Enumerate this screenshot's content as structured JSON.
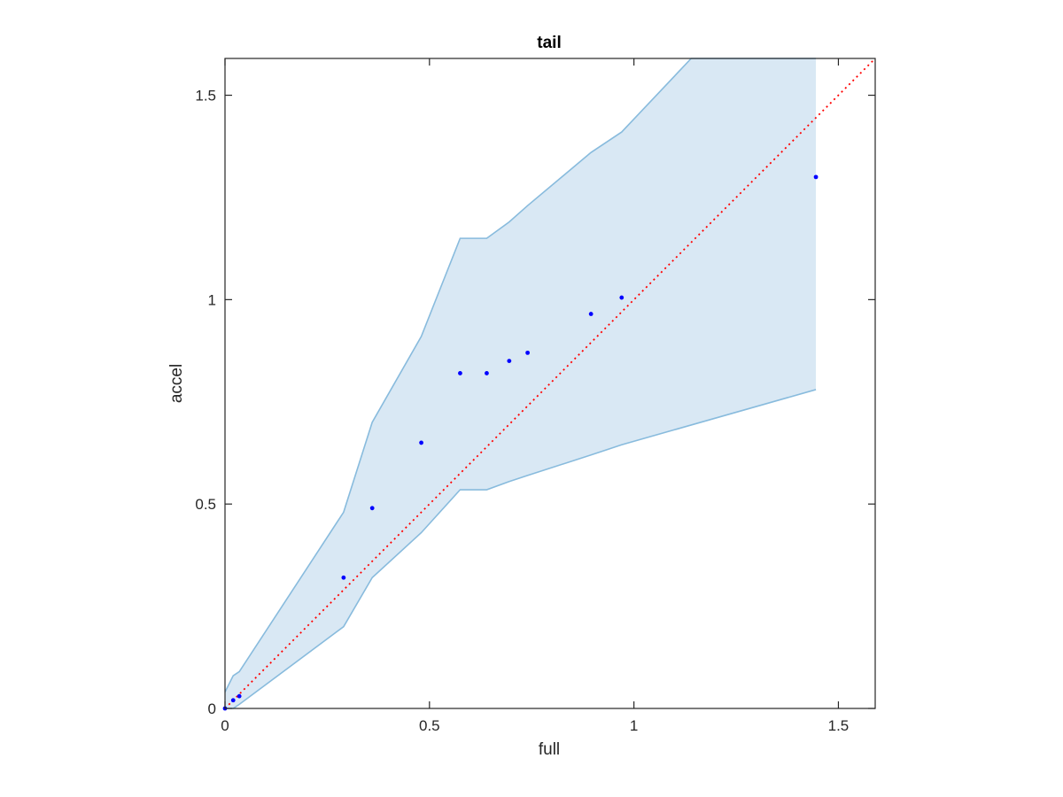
{
  "chart_data": {
    "type": "scatter",
    "title": "tail",
    "xlabel": "full",
    "ylabel": "accel",
    "xlim": [
      0,
      1.59
    ],
    "ylim": [
      0,
      1.59
    ],
    "xticks": [
      "0",
      "0.5",
      "1",
      "1.5"
    ],
    "yticks": [
      "0",
      "0.5",
      "1",
      "1.5"
    ],
    "xtick_values": [
      0,
      0.5,
      1,
      1.5
    ],
    "ytick_values": [
      0,
      0.5,
      1,
      1.5
    ],
    "grid": false,
    "points": [
      {
        "x": 0.0,
        "y": 0.0
      },
      {
        "x": 0.02,
        "y": 0.02
      },
      {
        "x": 0.035,
        "y": 0.03
      },
      {
        "x": 0.29,
        "y": 0.32
      },
      {
        "x": 0.36,
        "y": 0.49
      },
      {
        "x": 0.48,
        "y": 0.65
      },
      {
        "x": 0.575,
        "y": 0.82
      },
      {
        "x": 0.64,
        "y": 0.82
      },
      {
        "x": 0.695,
        "y": 0.85
      },
      {
        "x": 0.74,
        "y": 0.87
      },
      {
        "x": 0.895,
        "y": 0.965
      },
      {
        "x": 0.97,
        "y": 1.005
      },
      {
        "x": 1.445,
        "y": 1.3
      }
    ],
    "band": {
      "upper": [
        [
          0.0,
          0.04
        ],
        [
          0.02,
          0.08
        ],
        [
          0.035,
          0.09
        ],
        [
          0.29,
          0.48
        ],
        [
          0.36,
          0.7
        ],
        [
          0.48,
          0.91
        ],
        [
          0.575,
          1.15
        ],
        [
          0.64,
          1.15
        ],
        [
          0.695,
          1.19
        ],
        [
          0.74,
          1.23
        ],
        [
          0.895,
          1.36
        ],
        [
          0.97,
          1.41
        ],
        [
          1.14,
          1.59
        ],
        [
          1.445,
          1.59
        ]
      ],
      "lower": [
        [
          0.0,
          0.0
        ],
        [
          0.02,
          0.0
        ],
        [
          0.035,
          0.01
        ],
        [
          0.29,
          0.2
        ],
        [
          0.36,
          0.32
        ],
        [
          0.48,
          0.43
        ],
        [
          0.575,
          0.535
        ],
        [
          0.64,
          0.535
        ],
        [
          0.695,
          0.555
        ],
        [
          0.74,
          0.57
        ],
        [
          0.895,
          0.62
        ],
        [
          0.97,
          0.645
        ],
        [
          1.445,
          0.78
        ]
      ]
    },
    "reference_line": {
      "x": [
        0,
        1.59
      ],
      "y": [
        0,
        1.59
      ],
      "style": "dotted"
    },
    "colors": {
      "points": "#0000ff",
      "band_fill": "#d9e8f4",
      "band_edge": "#88bbdd",
      "reference_line": "#ff0000",
      "axes": "#262626"
    }
  }
}
